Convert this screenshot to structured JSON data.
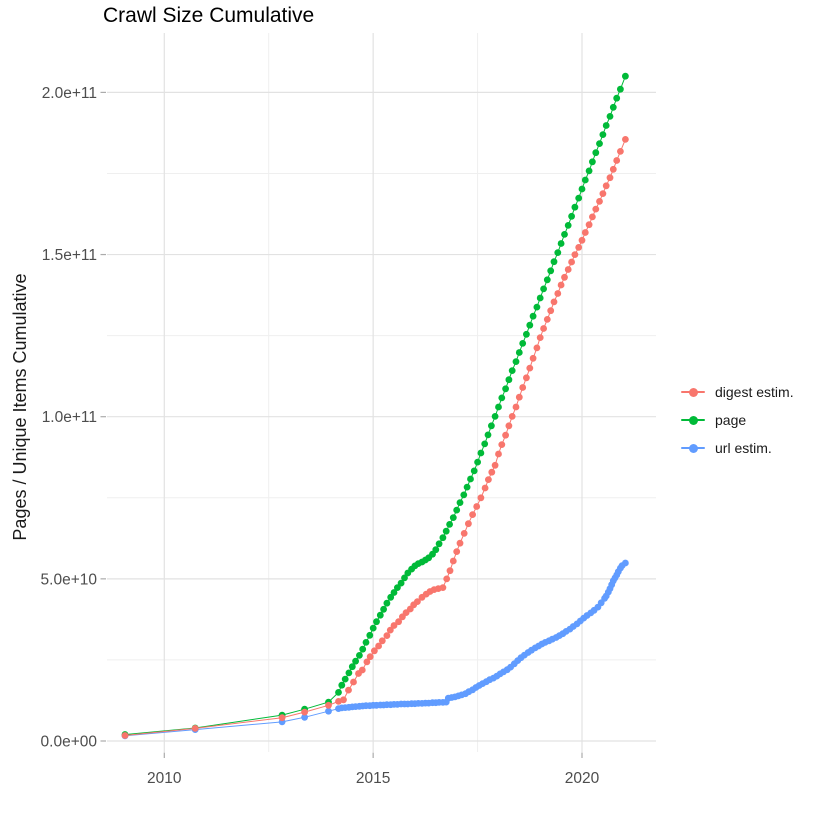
{
  "title": "Crawl Size Cumulative",
  "y_axis": {
    "label": "Pages / Unique Items Cumulative",
    "tick_labels": [
      "0.0e+00",
      "5.0e+10",
      "1.0e+11",
      "1.5e+11",
      "2.0e+11"
    ],
    "tick_values_billions": [
      0,
      50,
      100,
      150,
      200
    ],
    "minor_gridline_values_billions": [
      25,
      75,
      125,
      175
    ]
  },
  "x_axis": {
    "tick_labels": [
      "2010",
      "2015",
      "2020"
    ],
    "tick_values": [
      2010,
      2015,
      2020
    ],
    "minor_gridline_values": [
      2012.5,
      2017.5
    ]
  },
  "legend": {
    "position": "right",
    "items": [
      {
        "label": "digest estim.",
        "color": "#F8766D"
      },
      {
        "label": "page",
        "color": "#00BA38"
      },
      {
        "label": "url estim.",
        "color": "#619CFF"
      }
    ]
  },
  "colors": {
    "grid_major": "#E2E2E2",
    "grid_minor": "#EFEFEF",
    "tick_mark": "#ABABAB",
    "tick_text": "#4D4D4D"
  },
  "chart_data": {
    "type": "scatter",
    "title": "Crawl Size Cumulative",
    "xlabel": "",
    "ylabel": "Pages / Unique Items Cumulative",
    "x_unit": "year",
    "value_unit": 1000000000.0,
    "value_unit_note": "point values are in billions (1e9) of pages / unique items, read from the y axis",
    "xlim": [
      2008.6,
      2021.6
    ],
    "ylim_billions": [
      0,
      218
    ],
    "grid": "on",
    "legend_position": "right",
    "series": [
      {
        "name": "digest estim.",
        "color": "#F8766D",
        "points": [
          [
            2009.06,
            1.7
          ],
          [
            2010.74,
            3.9
          ],
          [
            2012.82,
            7.2
          ],
          [
            2013.36,
            8.9
          ],
          [
            2013.93,
            11.0
          ],
          [
            2014.17,
            12.2
          ],
          [
            2014.29,
            12.7
          ],
          [
            2014.41,
            15.7
          ],
          [
            2014.53,
            18.2
          ],
          [
            2014.65,
            20.8
          ],
          [
            2014.74,
            21.9
          ],
          [
            2014.85,
            24.4
          ],
          [
            2014.93,
            26.0
          ],
          [
            2015.03,
            27.8
          ],
          [
            2015.13,
            29.3
          ],
          [
            2015.22,
            30.9
          ],
          [
            2015.33,
            32.5
          ],
          [
            2015.41,
            34.2
          ],
          [
            2015.5,
            35.6
          ],
          [
            2015.61,
            36.8
          ],
          [
            2015.7,
            38.3
          ],
          [
            2015.79,
            39.6
          ],
          [
            2015.89,
            40.7
          ],
          [
            2015.97,
            42.0
          ],
          [
            2016.06,
            43.0
          ],
          [
            2016.17,
            44.3
          ],
          [
            2016.27,
            45.3
          ],
          [
            2016.36,
            46.1
          ],
          [
            2016.46,
            46.7
          ],
          [
            2016.56,
            47.0
          ],
          [
            2016.67,
            47.3
          ],
          [
            2016.76,
            50.0
          ],
          [
            2016.84,
            52.5
          ],
          [
            2016.92,
            55.5
          ],
          [
            2017.0,
            58.4
          ],
          [
            2017.08,
            61.0
          ],
          [
            2017.18,
            64.0
          ],
          [
            2017.28,
            67.0
          ],
          [
            2017.38,
            69.8
          ],
          [
            2017.48,
            72.3
          ],
          [
            2017.58,
            75.0
          ],
          [
            2017.68,
            78.0
          ],
          [
            2017.76,
            80.6
          ],
          [
            2017.84,
            82.9
          ],
          [
            2017.92,
            85.0
          ],
          [
            2018.0,
            88.5
          ],
          [
            2018.08,
            91.4
          ],
          [
            2018.17,
            94.3
          ],
          [
            2018.25,
            97.2
          ],
          [
            2018.33,
            100.1
          ],
          [
            2018.42,
            103.0
          ],
          [
            2018.5,
            106.0
          ],
          [
            2018.58,
            109.0
          ],
          [
            2018.67,
            112.0
          ],
          [
            2018.75,
            115.0
          ],
          [
            2018.83,
            118.0
          ],
          [
            2018.92,
            121.2
          ],
          [
            2019.0,
            124.4
          ],
          [
            2019.08,
            127.2
          ],
          [
            2019.17,
            130.0
          ],
          [
            2019.25,
            132.7
          ],
          [
            2019.33,
            135.4
          ],
          [
            2019.42,
            138.0
          ],
          [
            2019.5,
            140.6
          ],
          [
            2019.58,
            143.0
          ],
          [
            2019.67,
            145.4
          ],
          [
            2019.75,
            147.7
          ],
          [
            2019.83,
            150.0
          ],
          [
            2019.92,
            152.2
          ],
          [
            2020.0,
            154.4
          ],
          [
            2020.08,
            156.8
          ],
          [
            2020.17,
            159.2
          ],
          [
            2020.25,
            161.6
          ],
          [
            2020.33,
            164.0
          ],
          [
            2020.42,
            166.4
          ],
          [
            2020.5,
            168.8
          ],
          [
            2020.58,
            171.2
          ],
          [
            2020.67,
            173.7
          ],
          [
            2020.75,
            176.3
          ],
          [
            2020.83,
            179.0
          ],
          [
            2020.92,
            181.8
          ],
          [
            2021.04,
            185.5
          ]
        ]
      },
      {
        "name": "page",
        "color": "#00BA38",
        "points": [
          [
            2009.06,
            2.0
          ],
          [
            2010.74,
            4.0
          ],
          [
            2012.82,
            8.0
          ],
          [
            2013.36,
            9.8
          ],
          [
            2013.93,
            12.0
          ],
          [
            2014.17,
            15.0
          ],
          [
            2014.25,
            17.2
          ],
          [
            2014.33,
            19.1
          ],
          [
            2014.42,
            21.0
          ],
          [
            2014.5,
            22.9
          ],
          [
            2014.58,
            24.6
          ],
          [
            2014.67,
            26.4
          ],
          [
            2014.75,
            28.3
          ],
          [
            2014.83,
            30.4
          ],
          [
            2014.92,
            32.6
          ],
          [
            2015.0,
            34.8
          ],
          [
            2015.08,
            36.8
          ],
          [
            2015.17,
            38.8
          ],
          [
            2015.25,
            40.6
          ],
          [
            2015.33,
            42.5
          ],
          [
            2015.42,
            44.3
          ],
          [
            2015.5,
            45.8
          ],
          [
            2015.58,
            47.3
          ],
          [
            2015.67,
            48.7
          ],
          [
            2015.75,
            50.3
          ],
          [
            2015.83,
            51.8
          ],
          [
            2015.92,
            53.0
          ],
          [
            2016.0,
            54.0
          ],
          [
            2016.08,
            54.7
          ],
          [
            2016.17,
            55.2
          ],
          [
            2016.25,
            55.8
          ],
          [
            2016.33,
            56.5
          ],
          [
            2016.42,
            57.6
          ],
          [
            2016.5,
            59.0
          ],
          [
            2016.58,
            60.8
          ],
          [
            2016.67,
            62.7
          ],
          [
            2016.75,
            64.7
          ],
          [
            2016.83,
            66.8
          ],
          [
            2016.92,
            68.9
          ],
          [
            2017.0,
            71.2
          ],
          [
            2017.08,
            73.5
          ],
          [
            2017.17,
            75.9
          ],
          [
            2017.25,
            78.3
          ],
          [
            2017.33,
            80.8
          ],
          [
            2017.42,
            83.3
          ],
          [
            2017.5,
            86.0
          ],
          [
            2017.58,
            88.8
          ],
          [
            2017.67,
            91.6
          ],
          [
            2017.75,
            94.4
          ],
          [
            2017.83,
            97.2
          ],
          [
            2017.92,
            100.1
          ],
          [
            2018.0,
            103.0
          ],
          [
            2018.08,
            105.8
          ],
          [
            2018.17,
            108.6
          ],
          [
            2018.25,
            111.4
          ],
          [
            2018.33,
            114.2
          ],
          [
            2018.42,
            117.0
          ],
          [
            2018.5,
            119.8
          ],
          [
            2018.58,
            122.6
          ],
          [
            2018.67,
            125.4
          ],
          [
            2018.75,
            128.2
          ],
          [
            2018.83,
            131.0
          ],
          [
            2018.92,
            133.8
          ],
          [
            2019.0,
            136.6
          ],
          [
            2019.08,
            139.4
          ],
          [
            2019.17,
            142.2
          ],
          [
            2019.25,
            145.0
          ],
          [
            2019.33,
            147.8
          ],
          [
            2019.42,
            150.6
          ],
          [
            2019.5,
            153.4
          ],
          [
            2019.58,
            156.2
          ],
          [
            2019.67,
            159.0
          ],
          [
            2019.75,
            161.8
          ],
          [
            2019.83,
            164.6
          ],
          [
            2019.92,
            167.4
          ],
          [
            2020.0,
            170.2
          ],
          [
            2020.08,
            173.0
          ],
          [
            2020.17,
            175.8
          ],
          [
            2020.25,
            178.6
          ],
          [
            2020.33,
            181.4
          ],
          [
            2020.42,
            184.2
          ],
          [
            2020.5,
            187.0
          ],
          [
            2020.58,
            189.8
          ],
          [
            2020.67,
            192.6
          ],
          [
            2020.75,
            195.4
          ],
          [
            2020.83,
            198.2
          ],
          [
            2020.92,
            201.0
          ],
          [
            2021.04,
            205.0
          ]
        ]
      },
      {
        "name": "url estim.",
        "color": "#619CFF",
        "points": [
          [
            2009.06,
            1.6
          ],
          [
            2010.74,
            3.5
          ],
          [
            2012.82,
            5.9
          ],
          [
            2013.36,
            7.3
          ],
          [
            2013.93,
            9.2
          ],
          [
            2014.17,
            10.0
          ],
          [
            2014.25,
            10.2
          ],
          [
            2014.33,
            10.3
          ],
          [
            2014.42,
            10.4
          ],
          [
            2014.5,
            10.5
          ],
          [
            2014.58,
            10.6
          ],
          [
            2014.67,
            10.7
          ],
          [
            2014.75,
            10.8
          ],
          [
            2014.83,
            10.9
          ],
          [
            2014.92,
            10.9
          ],
          [
            2015.0,
            11.0
          ],
          [
            2015.08,
            11.0
          ],
          [
            2015.17,
            11.1
          ],
          [
            2015.25,
            11.1
          ],
          [
            2015.33,
            11.2
          ],
          [
            2015.42,
            11.2
          ],
          [
            2015.5,
            11.3
          ],
          [
            2015.58,
            11.3
          ],
          [
            2015.67,
            11.4
          ],
          [
            2015.75,
            11.4
          ],
          [
            2015.83,
            11.4
          ],
          [
            2015.92,
            11.5
          ],
          [
            2016.0,
            11.5
          ],
          [
            2016.08,
            11.6
          ],
          [
            2016.17,
            11.6
          ],
          [
            2016.25,
            11.7
          ],
          [
            2016.33,
            11.7
          ],
          [
            2016.42,
            11.8
          ],
          [
            2016.5,
            11.8
          ],
          [
            2016.58,
            11.9
          ],
          [
            2016.67,
            11.9
          ],
          [
            2016.75,
            12.0
          ],
          [
            2016.8,
            13.2
          ],
          [
            2016.88,
            13.4
          ],
          [
            2016.96,
            13.6
          ],
          [
            2017.04,
            13.9
          ],
          [
            2017.12,
            14.2
          ],
          [
            2017.21,
            14.6
          ],
          [
            2017.29,
            15.2
          ],
          [
            2017.38,
            15.8
          ],
          [
            2017.46,
            16.5
          ],
          [
            2017.54,
            17.1
          ],
          [
            2017.62,
            17.7
          ],
          [
            2017.71,
            18.3
          ],
          [
            2017.79,
            18.9
          ],
          [
            2017.88,
            19.4
          ],
          [
            2017.96,
            20.0
          ],
          [
            2018.04,
            20.7
          ],
          [
            2018.12,
            21.3
          ],
          [
            2018.21,
            22.0
          ],
          [
            2018.29,
            22.8
          ],
          [
            2018.38,
            23.8
          ],
          [
            2018.46,
            24.8
          ],
          [
            2018.54,
            25.7
          ],
          [
            2018.62,
            26.5
          ],
          [
            2018.71,
            27.3
          ],
          [
            2018.79,
            28.0
          ],
          [
            2018.88,
            28.7
          ],
          [
            2018.96,
            29.3
          ],
          [
            2019.04,
            29.9
          ],
          [
            2019.12,
            30.4
          ],
          [
            2019.21,
            30.9
          ],
          [
            2019.29,
            31.4
          ],
          [
            2019.38,
            31.9
          ],
          [
            2019.46,
            32.5
          ],
          [
            2019.54,
            33.1
          ],
          [
            2019.62,
            33.8
          ],
          [
            2019.71,
            34.5
          ],
          [
            2019.79,
            35.3
          ],
          [
            2019.88,
            36.1
          ],
          [
            2019.96,
            37.0
          ],
          [
            2020.04,
            37.9
          ],
          [
            2020.12,
            38.7
          ],
          [
            2020.21,
            39.5
          ],
          [
            2020.29,
            40.3
          ],
          [
            2020.38,
            41.3
          ],
          [
            2020.46,
            42.6
          ],
          [
            2020.54,
            44.0
          ],
          [
            2020.58,
            44.7
          ],
          [
            2020.63,
            45.9
          ],
          [
            2020.67,
            47.0
          ],
          [
            2020.71,
            48.2
          ],
          [
            2020.75,
            49.4
          ],
          [
            2020.79,
            50.3
          ],
          [
            2020.83,
            51.2
          ],
          [
            2020.87,
            52.2
          ],
          [
            2020.92,
            53.3
          ],
          [
            2020.96,
            54.1
          ],
          [
            2021.04,
            54.9
          ]
        ]
      }
    ]
  }
}
